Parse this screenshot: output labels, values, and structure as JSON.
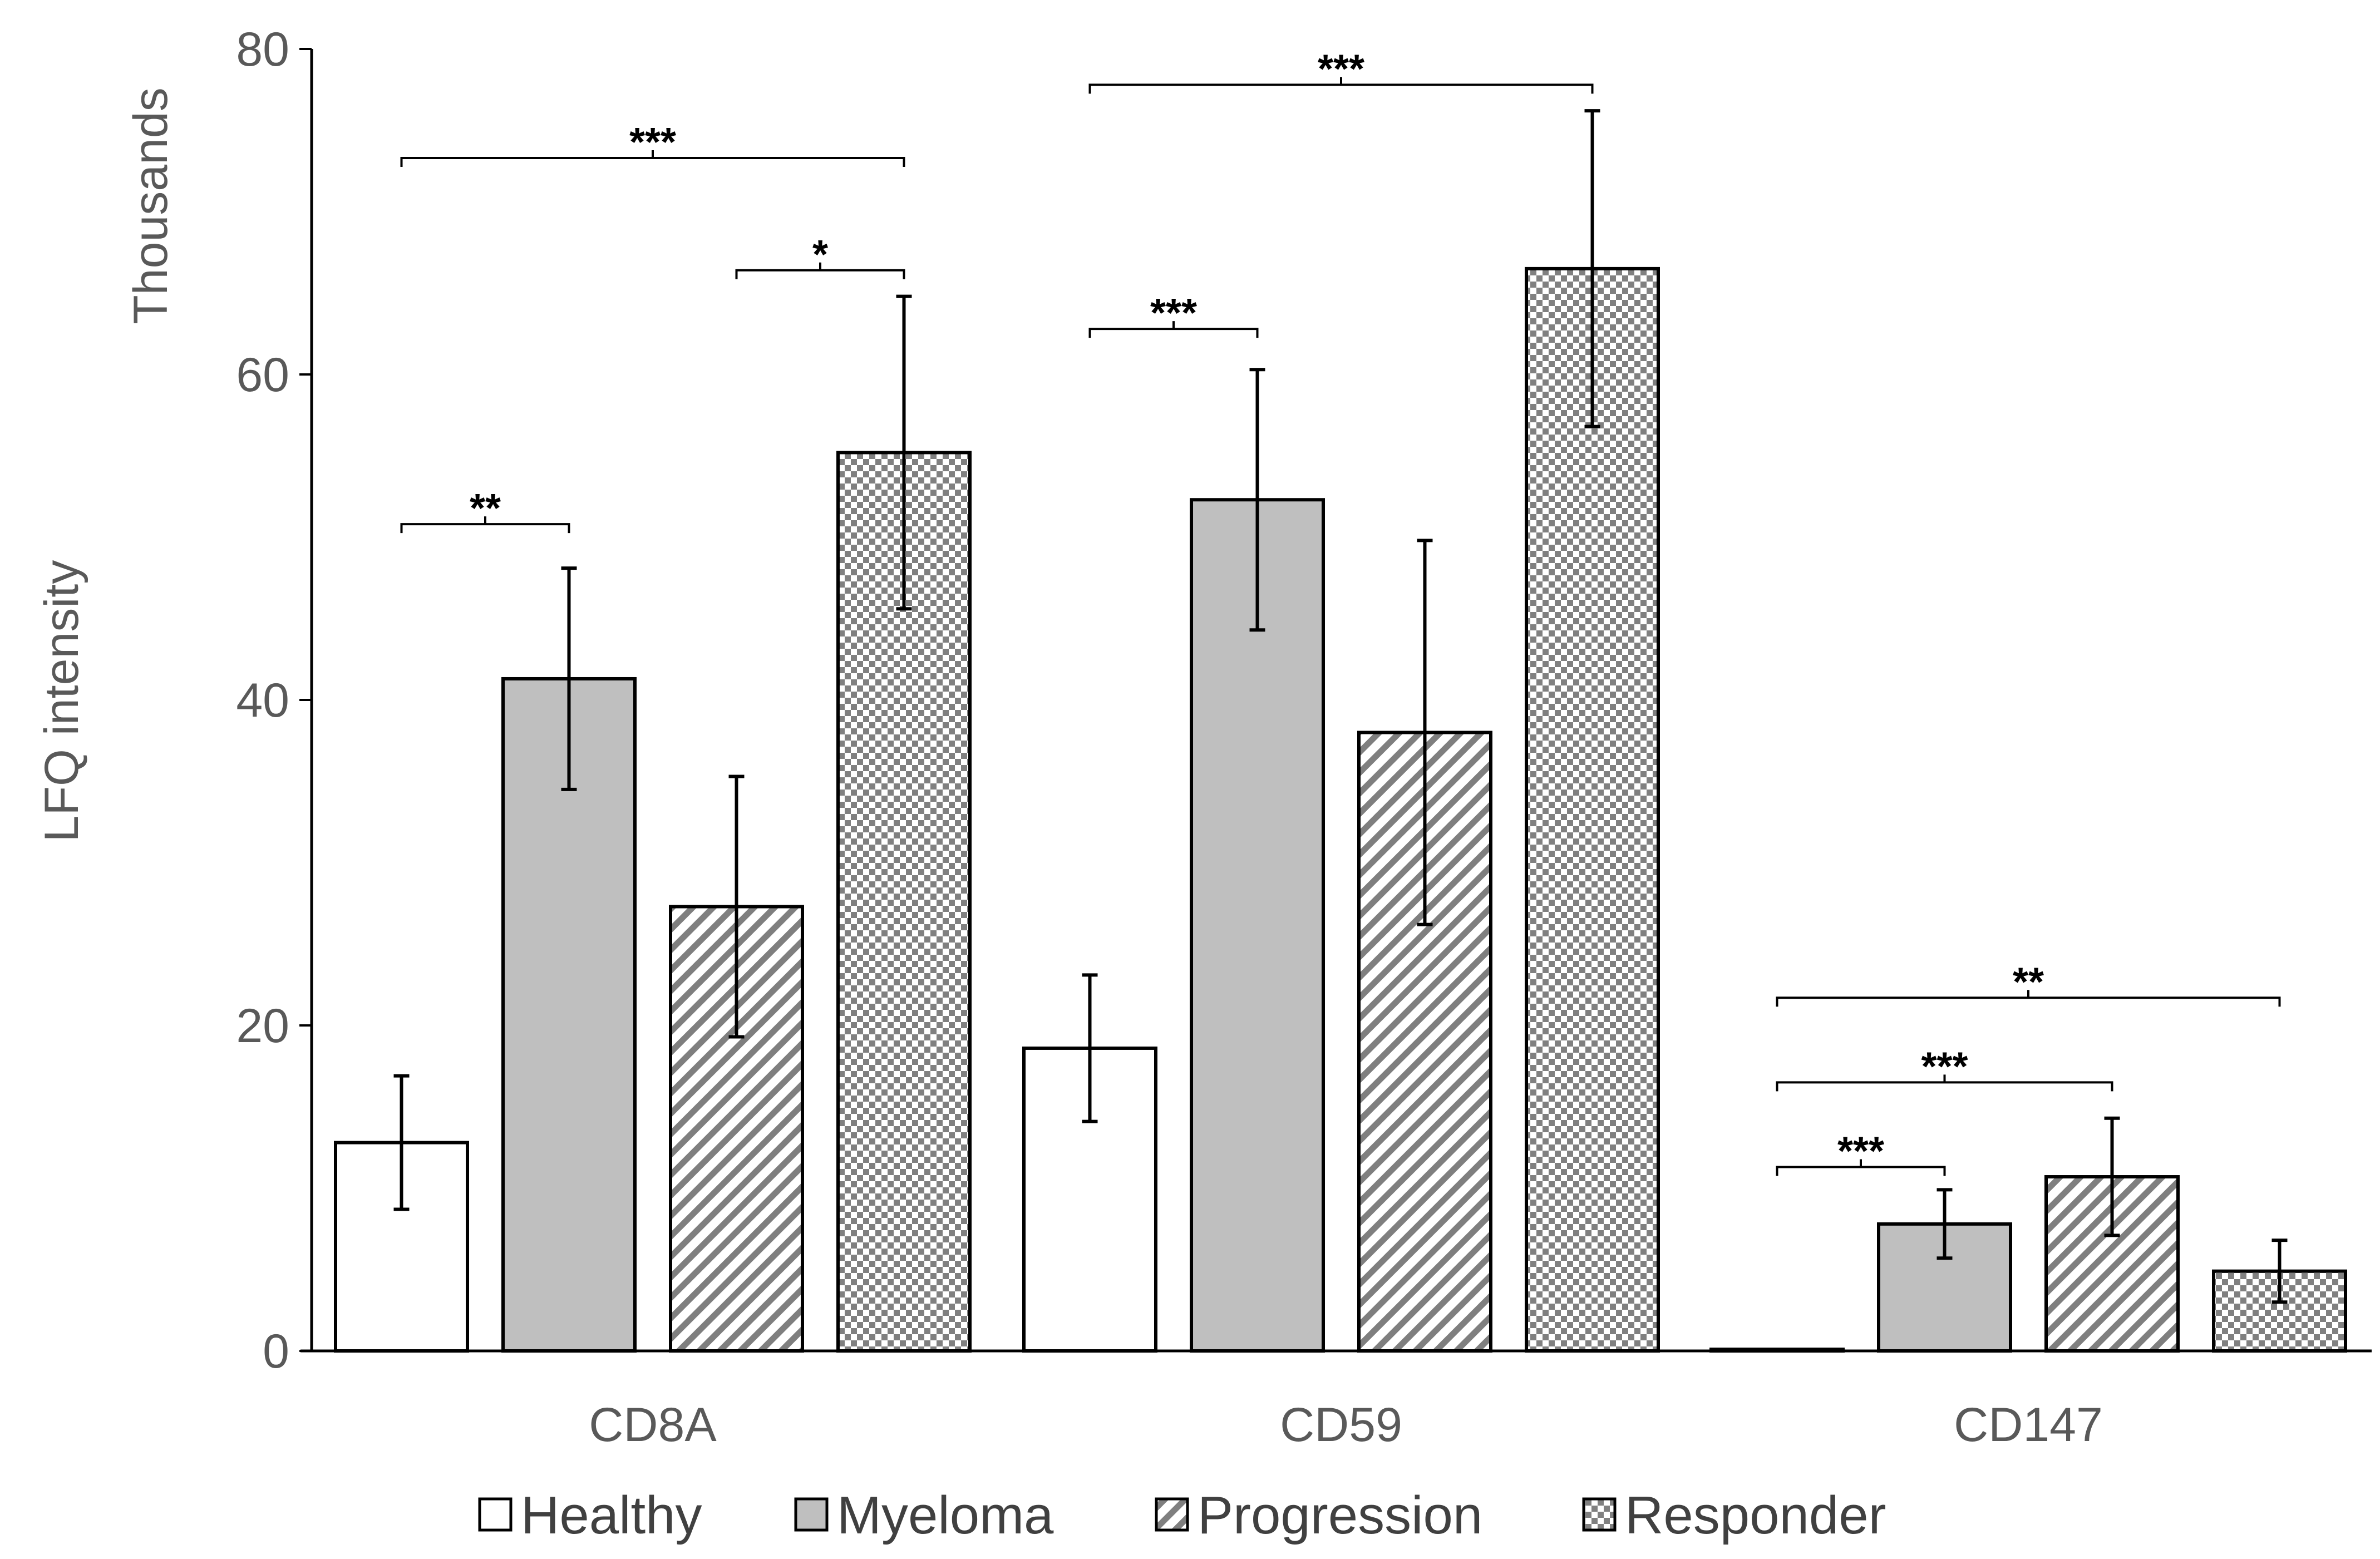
{
  "chart_data": {
    "type": "bar",
    "title": "",
    "xlabel": "",
    "ylabel": "LFQ intensity",
    "yunit_label": "Thousands",
    "ylim": [
      0,
      80
    ],
    "yticks": [
      0,
      20,
      40,
      60,
      80
    ],
    "categories": [
      "CD8A",
      "CD59",
      "CD147"
    ],
    "series": [
      {
        "name": "Healthy",
        "pattern": "white",
        "values": [
          12.8,
          18.6,
          0.1
        ],
        "errors": [
          4.1,
          4.5,
          0.0
        ]
      },
      {
        "name": "Myeloma",
        "pattern": "gray",
        "values": [
          41.3,
          52.3,
          7.8
        ],
        "errors": [
          6.8,
          8.0,
          2.1
        ]
      },
      {
        "name": "Progression",
        "pattern": "diagonal",
        "values": [
          27.3,
          38.0,
          10.7
        ],
        "errors": [
          8.0,
          11.8,
          3.6
        ]
      },
      {
        "name": "Responder",
        "pattern": "checker",
        "values": [
          55.2,
          66.5,
          4.9
        ],
        "errors": [
          9.6,
          9.7,
          1.9
        ]
      }
    ],
    "significance": [
      {
        "category": 0,
        "from": 0,
        "to": 1,
        "label": "**",
        "y": 50.8
      },
      {
        "category": 0,
        "from": 2,
        "to": 3,
        "label": "*",
        "y": 66.4
      },
      {
        "category": 0,
        "from": 0,
        "to": 3,
        "label": "***",
        "y": 73.3
      },
      {
        "category": 1,
        "from": 0,
        "to": 1,
        "label": "***",
        "y": 62.8
      },
      {
        "category": 1,
        "from": 0,
        "to": 3,
        "label": "***",
        "y": 77.8
      },
      {
        "category": 2,
        "from": 0,
        "to": 1,
        "label": "***",
        "y": 11.3
      },
      {
        "category": 2,
        "from": 0,
        "to": 2,
        "label": "***",
        "y": 16.5
      },
      {
        "category": 2,
        "from": 0,
        "to": 3,
        "label": "**",
        "y": 21.7
      }
    ],
    "legend_position": "bottom"
  },
  "colors": {
    "axis": "#000000",
    "text": "#595959",
    "myeloma_fill": "#bfbfbf",
    "pattern_ink": "#7f7f7f"
  }
}
